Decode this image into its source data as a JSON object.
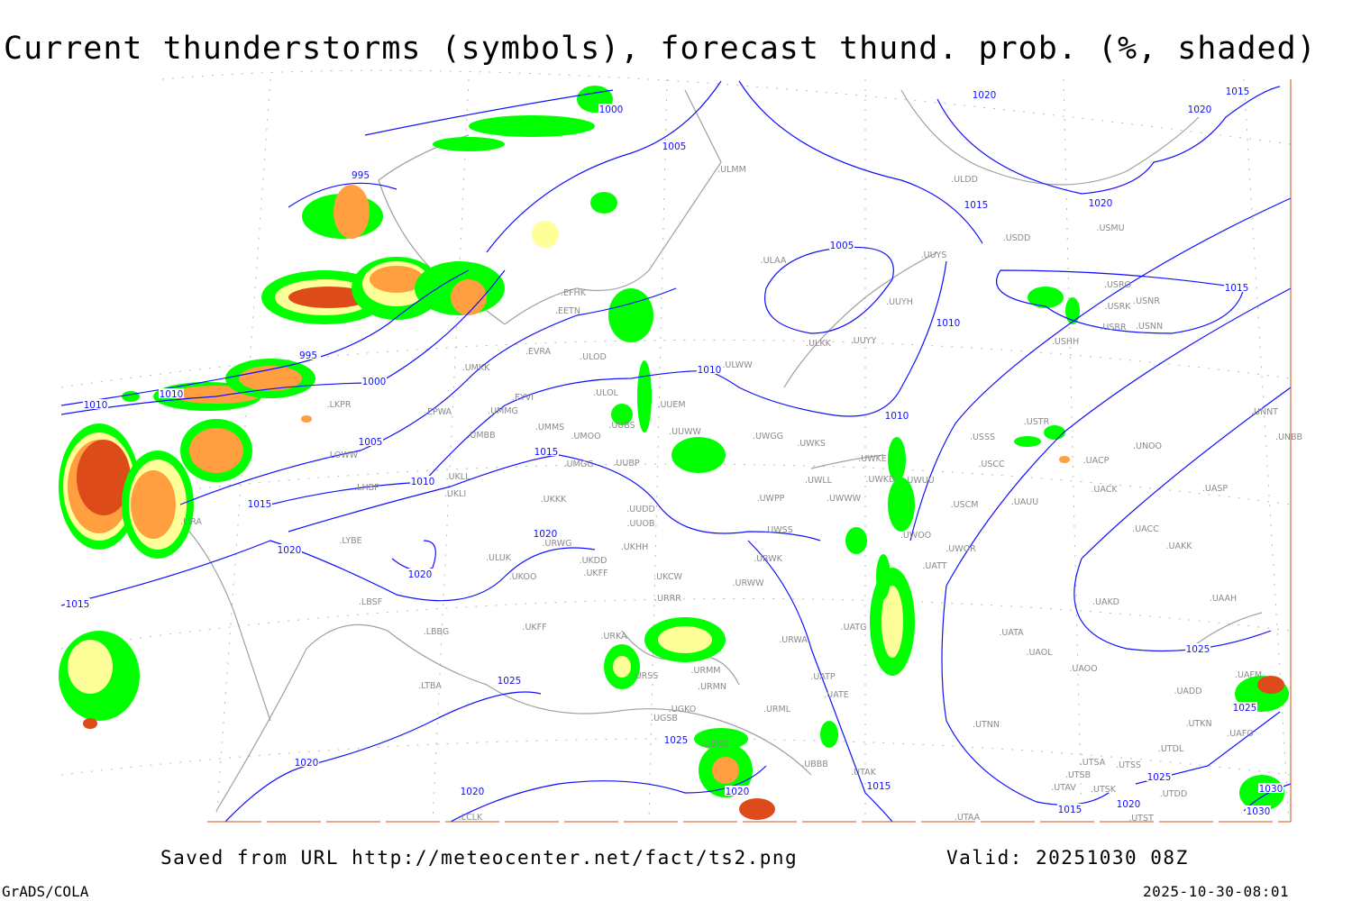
{
  "title": "Current thunderstorms (symbols), forecast thund. prob. (%, shaded)",
  "footer": {
    "saved_from": "Saved from URL http://meteocenter.net/fact/ts2.png",
    "valid": "Valid: 20251030 08Z",
    "software": "GrADS/COLA",
    "generated": "2025-10-30-08:01"
  },
  "colors": {
    "isobar": "#1010ff",
    "coastline": "#a0a0a0",
    "prob_low": "#00ff00",
    "prob_mid": "#ffff99",
    "prob_high": "#ff9f40",
    "prob_max": "#dd4b1a"
  },
  "isobar_labels": [
    "1000",
    "1005",
    "995",
    "1020",
    "1015",
    "1020",
    "1015",
    "1020",
    "1005",
    "1015",
    "1010",
    "995",
    "1000",
    "1010",
    "1010",
    "1010",
    "1010",
    "1005",
    "1015",
    "1010",
    "1015",
    "1020",
    "1020",
    "1020",
    "1015",
    "1025",
    "1025",
    "1025",
    "1025",
    "1020",
    "1020",
    "1020",
    "1015",
    "1025",
    "1030",
    "1020",
    "1015",
    "1030"
  ],
  "stations": [
    "ULMM",
    "ULDD",
    "USDD",
    "USMU",
    "ULAA",
    "UUYS",
    "USRO",
    "USNR",
    "USRK",
    "USRR",
    "USNN",
    "USHH",
    "UUYH",
    "ULKK",
    "UUYY",
    "ULWW",
    "EFHK",
    "EETN",
    "EVRA",
    "ULOD",
    "UMKK",
    "ULOL",
    "UUEM",
    "EYVI",
    "UMMG",
    "EPWA",
    "LKPR",
    "UMMS",
    "UMOO",
    "UUBS",
    "UMBB",
    "UUWW",
    "UWGG",
    "UWKS",
    "USSS",
    "USTR",
    "UNOO",
    "UNNT",
    "UNBB",
    "UACP",
    "USCC",
    "UWKE",
    "UWKD",
    "UWUU",
    "UWLL",
    "UWPP",
    "UWWW",
    "USCM",
    "UAUU",
    "UACK",
    "UASP",
    "UACC",
    "UAKK",
    "UWSS",
    "UWOO",
    "UWOR",
    "UATT",
    "LOWW",
    "LHBP",
    "UKLL",
    "UKLI",
    "UMGG",
    "UUBP",
    "UKKK",
    "UUDD",
    "UUOB",
    "LIRA",
    "LYBE",
    "UKHH",
    "UKDD",
    "URWG",
    "UKOO",
    "ULUK",
    "UKFF",
    "UKCW",
    "URWW",
    "URWK",
    "URRR",
    "LBSF",
    "UAKD",
    "UAAH",
    "UKFF",
    "URKA",
    "LBBG",
    "UATG",
    "UATA",
    "UAOL",
    "URWA",
    "UATP",
    "UATE",
    "UAOO",
    "UAFM",
    "UADD",
    "URMM",
    "URSS",
    "URMN",
    "LTBA",
    "UGKO",
    "URML",
    "UGSB",
    "UTNN",
    "UTKN",
    "UAFO",
    "UTDL",
    "UDSG",
    "UBBB",
    "UTAK",
    "UTSA",
    "UTSS",
    "UTSB",
    "UTDD",
    "UTAV",
    "UTSK",
    "UTAA",
    "UTST",
    "LCLK"
  ]
}
